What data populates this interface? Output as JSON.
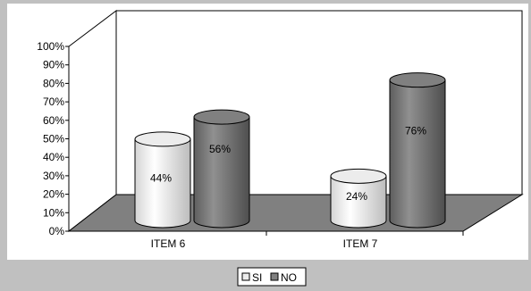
{
  "chart_data": {
    "type": "bar",
    "style": "3d-cylinder",
    "categories": [
      "ITEM 6",
      "ITEM 7"
    ],
    "series": [
      {
        "name": "SI",
        "values": [
          44,
          24
        ],
        "labels": [
          "44%",
          "24%"
        ]
      },
      {
        "name": "NO",
        "values": [
          56,
          76
        ],
        "labels": [
          "56%",
          "76%"
        ]
      }
    ],
    "y_ticks": [
      "0%",
      "10%",
      "20%",
      "30%",
      "40%",
      "50%",
      "60%",
      "70%",
      "80%",
      "90%",
      "100%"
    ],
    "ylim": [
      0,
      100
    ],
    "grid": false,
    "legend_position": "bottom-center",
    "colors": {
      "background": "#c0c0c0",
      "plot_area": "#ffffff",
      "floor": "#808080",
      "SI": "#ececec",
      "NO": "#808080"
    }
  }
}
